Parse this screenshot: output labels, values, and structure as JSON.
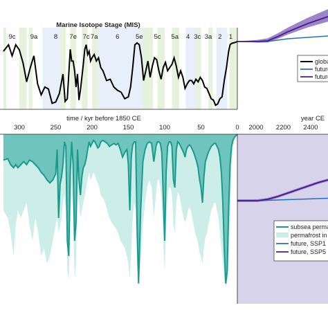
{
  "chart_data": [
    {
      "type": "line",
      "title": "Marine Isotope Stage (MIS)",
      "stages": [
        "9c",
        "9a",
        "8",
        "7e",
        "7c",
        "7a",
        "6",
        "5e",
        "5c",
        "5a",
        "4",
        "3c",
        "3a",
        "2",
        "1"
      ],
      "stage_ages_kyr": [
        310,
        280,
        250,
        226,
        208,
        197,
        165,
        135,
        110,
        86,
        68,
        55,
        40,
        24,
        9
      ],
      "x_past": [
        322,
        315,
        310,
        305,
        300,
        295,
        290,
        285,
        280,
        275,
        270,
        265,
        260,
        255,
        250,
        245,
        240,
        237,
        234,
        232,
        230,
        228,
        226,
        224,
        222,
        220,
        218,
        216,
        214,
        212,
        210,
        208,
        206,
        204,
        202,
        200,
        197,
        194,
        191,
        188,
        185,
        180,
        175,
        170,
        165,
        160,
        155,
        150,
        147,
        144,
        141,
        138,
        135,
        132,
        129,
        126,
        123,
        120,
        117,
        114,
        111,
        108,
        105,
        102,
        99,
        96,
        93,
        90,
        87,
        84,
        81,
        78,
        75,
        72,
        69,
        66,
        63,
        60,
        57,
        54,
        51,
        48,
        45,
        42,
        39,
        36,
        33,
        30,
        27,
        24,
        21,
        18,
        15,
        12,
        10,
        8,
        5,
        2,
        0
      ],
      "y_past_rel": [
        0.15,
        0.05,
        0.22,
        0.05,
        0.13,
        0.33,
        0.62,
        0.4,
        0.22,
        0.65,
        0.82,
        0.7,
        0.73,
        0.95,
        0.93,
        0.8,
        0.5,
        0.92,
        0.88,
        0.5,
        0.12,
        0.3,
        0.3,
        0.45,
        0.7,
        0.5,
        0.9,
        0.75,
        0.55,
        0.35,
        0.12,
        0.05,
        0.2,
        0.15,
        0.3,
        0.25,
        0.2,
        0.3,
        0.25,
        0.4,
        0.45,
        0.6,
        0.58,
        0.7,
        0.75,
        0.78,
        0.88,
        0.85,
        0.7,
        0.4,
        0.05,
        0.02,
        0.05,
        0.25,
        0.6,
        0.45,
        0.3,
        0.55,
        0.38,
        0.25,
        0.28,
        0.45,
        0.58,
        0.4,
        0.32,
        0.45,
        0.4,
        0.35,
        0.25,
        0.38,
        0.55,
        0.45,
        0.55,
        0.72,
        0.65,
        0.6,
        0.6,
        0.65,
        0.58,
        0.62,
        0.55,
        0.6,
        0.7,
        0.72,
        0.8,
        0.88,
        0.9,
        0.98,
        0.96,
        0.88,
        0.85,
        0.6,
        0.4,
        0.15,
        0.05,
        0.03,
        0.02,
        0.01,
        0.0
      ],
      "x_future": [
        1850,
        1900,
        1950,
        2000,
        2050,
        2100,
        2150,
        2200,
        2250,
        2300
      ],
      "future_ssp1_rel": [
        0.0,
        0.0,
        0.0,
        0.0,
        -0.02,
        -0.04,
        -0.05,
        -0.06,
        -0.07,
        -0.08
      ],
      "future_ssp5_rel": [
        0.0,
        0.0,
        0.0,
        -0.01,
        -0.07,
        -0.14,
        -0.2,
        -0.26,
        -0.31,
        -0.36
      ],
      "legend": [
        "global",
        "future",
        "future"
      ]
    },
    {
      "type": "area",
      "xlabel": "time / kyr before 1850 CE",
      "xticks_past": [
        "300",
        "250",
        "200",
        "150",
        "100",
        "50",
        "0"
      ],
      "xlabel_future": "year CE",
      "xticks_future": [
        "2000",
        "2200",
        "2400"
      ],
      "x_past": [
        322,
        316,
        312,
        308,
        305,
        302,
        298,
        294,
        290,
        286,
        282,
        278,
        274,
        270,
        266,
        262,
        258,
        254,
        250,
        248,
        246,
        244,
        242,
        240,
        238,
        236,
        234,
        232,
        230,
        228,
        226,
        224,
        222,
        220,
        218,
        216,
        214,
        212,
        210,
        208,
        206,
        204,
        202,
        200,
        198,
        196,
        194,
        192,
        190,
        188,
        185,
        182,
        179,
        176,
        173,
        170,
        167,
        164,
        161,
        158,
        155,
        152,
        150,
        148,
        146,
        144,
        142,
        140,
        138,
        136,
        133,
        130,
        127,
        124,
        121,
        118,
        115,
        112,
        110,
        108,
        106,
        104,
        102,
        100,
        98,
        96,
        94,
        92,
        90,
        88,
        86,
        84,
        82,
        80,
        78,
        76,
        74,
        72,
        70,
        68,
        66,
        64,
        62,
        60,
        58,
        56,
        54,
        52,
        50,
        48,
        46,
        44,
        42,
        40,
        38,
        36,
        34,
        32,
        30,
        28,
        26,
        24,
        22,
        20,
        18,
        16,
        14,
        12,
        10,
        8,
        6,
        4,
        2,
        0
      ],
      "subsea_rel": [
        0.17,
        0.16,
        0.2,
        0.22,
        0.2,
        0.22,
        0.2,
        0.18,
        0.2,
        0.17,
        0.18,
        0.2,
        0.22,
        0.25,
        0.27,
        0.3,
        0.32,
        0.3,
        0.26,
        0.1,
        0.55,
        0.33,
        0.28,
        0.2,
        0.05,
        0.08,
        0.7,
        0.8,
        0.25,
        0.05,
        0.2,
        0.7,
        0.58,
        0.1,
        0.3,
        0.4,
        0.28,
        0.22,
        0.2,
        0.16,
        0.1,
        0.05,
        0.08,
        0.06,
        0.04,
        0.05,
        0.07,
        0.09,
        0.08,
        0.05,
        0.04,
        0.05,
        0.06,
        0.08,
        0.07,
        0.06,
        0.07,
        0.06,
        0.1,
        0.15,
        0.12,
        0.1,
        0.2,
        0.5,
        0.15,
        0.07,
        0.05,
        0.05,
        0.6,
        0.98,
        0.5,
        0.18,
        0.1,
        0.06,
        0.05,
        0.06,
        0.18,
        0.08,
        0.05,
        0.05,
        0.06,
        0.12,
        0.4,
        0.7,
        0.25,
        0.08,
        0.05,
        0.05,
        0.08,
        0.3,
        0.35,
        0.1,
        0.05,
        0.06,
        0.08,
        0.1,
        0.12,
        0.15,
        0.1,
        0.08,
        0.07,
        0.08,
        0.1,
        0.12,
        0.15,
        0.18,
        0.22,
        0.3,
        0.35,
        0.45,
        0.28,
        0.18,
        0.15,
        0.12,
        0.1,
        0.08,
        0.07,
        0.06,
        0.06,
        0.08,
        0.1,
        0.15,
        0.25,
        0.45,
        0.75,
        0.98,
        0.9,
        0.5,
        0.2,
        0.08,
        0.04,
        0.02,
        0.01,
        0.0
      ],
      "permafrost_rel": [
        0.5,
        0.55,
        0.65,
        0.8,
        0.6,
        0.5,
        0.55,
        0.5,
        0.45,
        0.6,
        0.7,
        0.55,
        0.65,
        0.8,
        0.75,
        0.85,
        0.8,
        0.7,
        0.6,
        0.55,
        0.65,
        0.6,
        0.55,
        0.45,
        0.4,
        0.5,
        0.9,
        0.95,
        0.6,
        0.35,
        0.55,
        0.95,
        0.85,
        0.4,
        0.45,
        0.55,
        0.5,
        0.45,
        0.4,
        0.35,
        0.3,
        0.25,
        0.3,
        0.28,
        0.25,
        0.27,
        0.3,
        0.32,
        0.35,
        0.4,
        0.42,
        0.45,
        0.5,
        0.55,
        0.58,
        0.6,
        0.62,
        0.65,
        0.7,
        0.72,
        0.75,
        0.8,
        0.85,
        0.95,
        0.75,
        0.55,
        0.45,
        0.5,
        0.85,
        1.0,
        0.85,
        0.6,
        0.45,
        0.35,
        0.3,
        0.35,
        0.55,
        0.4,
        0.3,
        0.3,
        0.35,
        0.45,
        0.7,
        0.9,
        0.6,
        0.4,
        0.35,
        0.35,
        0.4,
        0.6,
        0.65,
        0.45,
        0.38,
        0.4,
        0.45,
        0.5,
        0.55,
        0.58,
        0.55,
        0.5,
        0.48,
        0.5,
        0.55,
        0.6,
        0.65,
        0.68,
        0.72,
        0.78,
        0.8,
        0.85,
        0.75,
        0.68,
        0.65,
        0.6,
        0.55,
        0.5,
        0.48,
        0.45,
        0.45,
        0.5,
        0.55,
        0.65,
        0.75,
        0.85,
        0.95,
        1.0,
        0.98,
        0.85,
        0.5,
        0.2,
        0.08,
        0.03,
        0.01,
        0.0
      ],
      "x_future": [
        1850,
        1900,
        1950,
        2000,
        2050,
        2100,
        2150,
        2200,
        2250,
        2300,
        2350,
        2400,
        2450
      ],
      "future_ssp1_rel": [
        0.0,
        0.0,
        0.0,
        -0.005,
        -0.01,
        -0.015,
        -0.02,
        -0.025,
        -0.03,
        -0.035,
        -0.04,
        -0.045,
        -0.05
      ],
      "future_ssp5_rel": [
        0.0,
        0.0,
        0.0,
        -0.02,
        -0.06,
        -0.11,
        -0.16,
        -0.21,
        -0.26,
        -0.3,
        -0.34,
        -0.37,
        -0.4
      ],
      "legend": [
        "subsea perma",
        "permafrost in",
        "future, SSP1",
        "future, SSP5"
      ]
    }
  ],
  "colors": {
    "black": "#000000",
    "teal": "#1a9a8e",
    "teal_fill": "#cdeee8",
    "teal_dark_fill": "#6fc5bd",
    "purple": "#4b1a8c",
    "purple_band": "#9b86c9",
    "future_bg": "#d6d3eb",
    "blue": "#2470b8",
    "interglacial": "#e6f2dc",
    "glacial": "#e6effa"
  }
}
